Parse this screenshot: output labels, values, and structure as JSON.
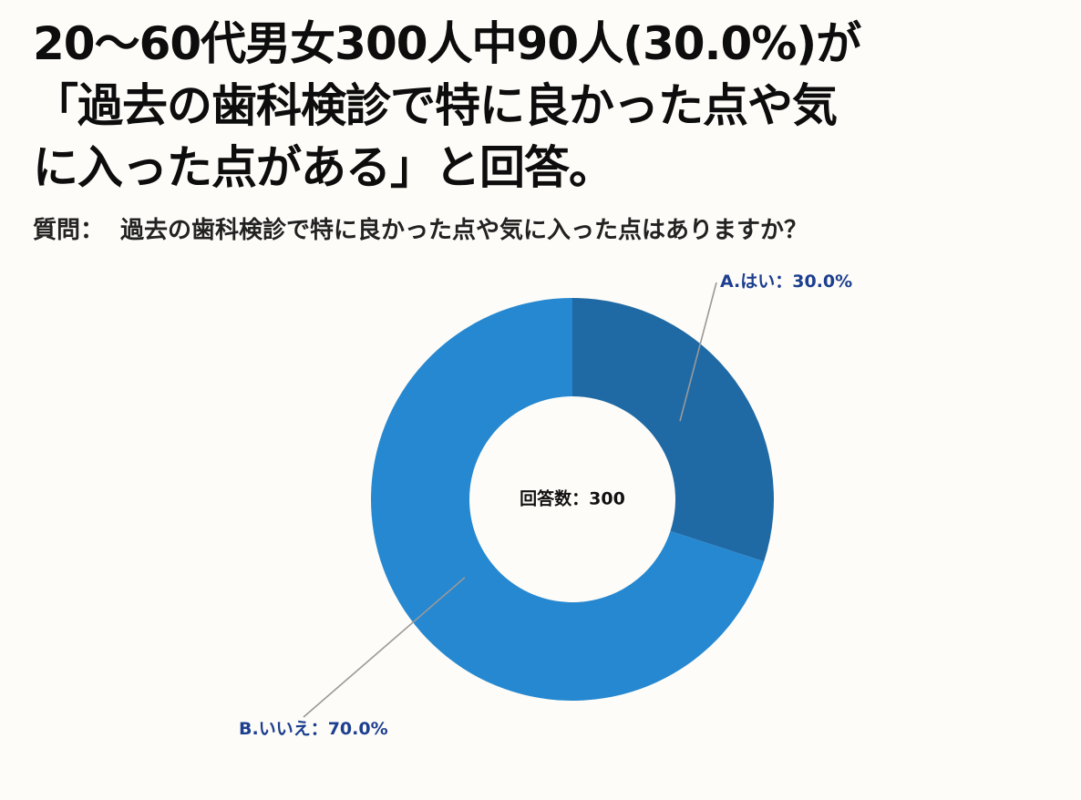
{
  "headline": {
    "line1": "20〜60代男女300人中90人(30.0%)が",
    "line2": "「過去の歯科検診で特に良かった点や気",
    "line3": "に入った点がある」と回答。"
  },
  "question": {
    "label": "質問：",
    "text": "過去の歯科検診で特に良かった点や気に入った点はありますか？"
  },
  "chart_data": {
    "type": "pie",
    "donut": true,
    "center_label": "回答数：300",
    "total": 300,
    "slices": [
      {
        "label": "A.はい：30.0%",
        "value": 30.0,
        "color": "#1f6aa5"
      },
      {
        "label": "B.いいえ：70.0%",
        "value": 70.0,
        "color": "#2688d0"
      }
    ],
    "start": "12 o'clock",
    "direction": "clockwise",
    "legend": "none"
  }
}
